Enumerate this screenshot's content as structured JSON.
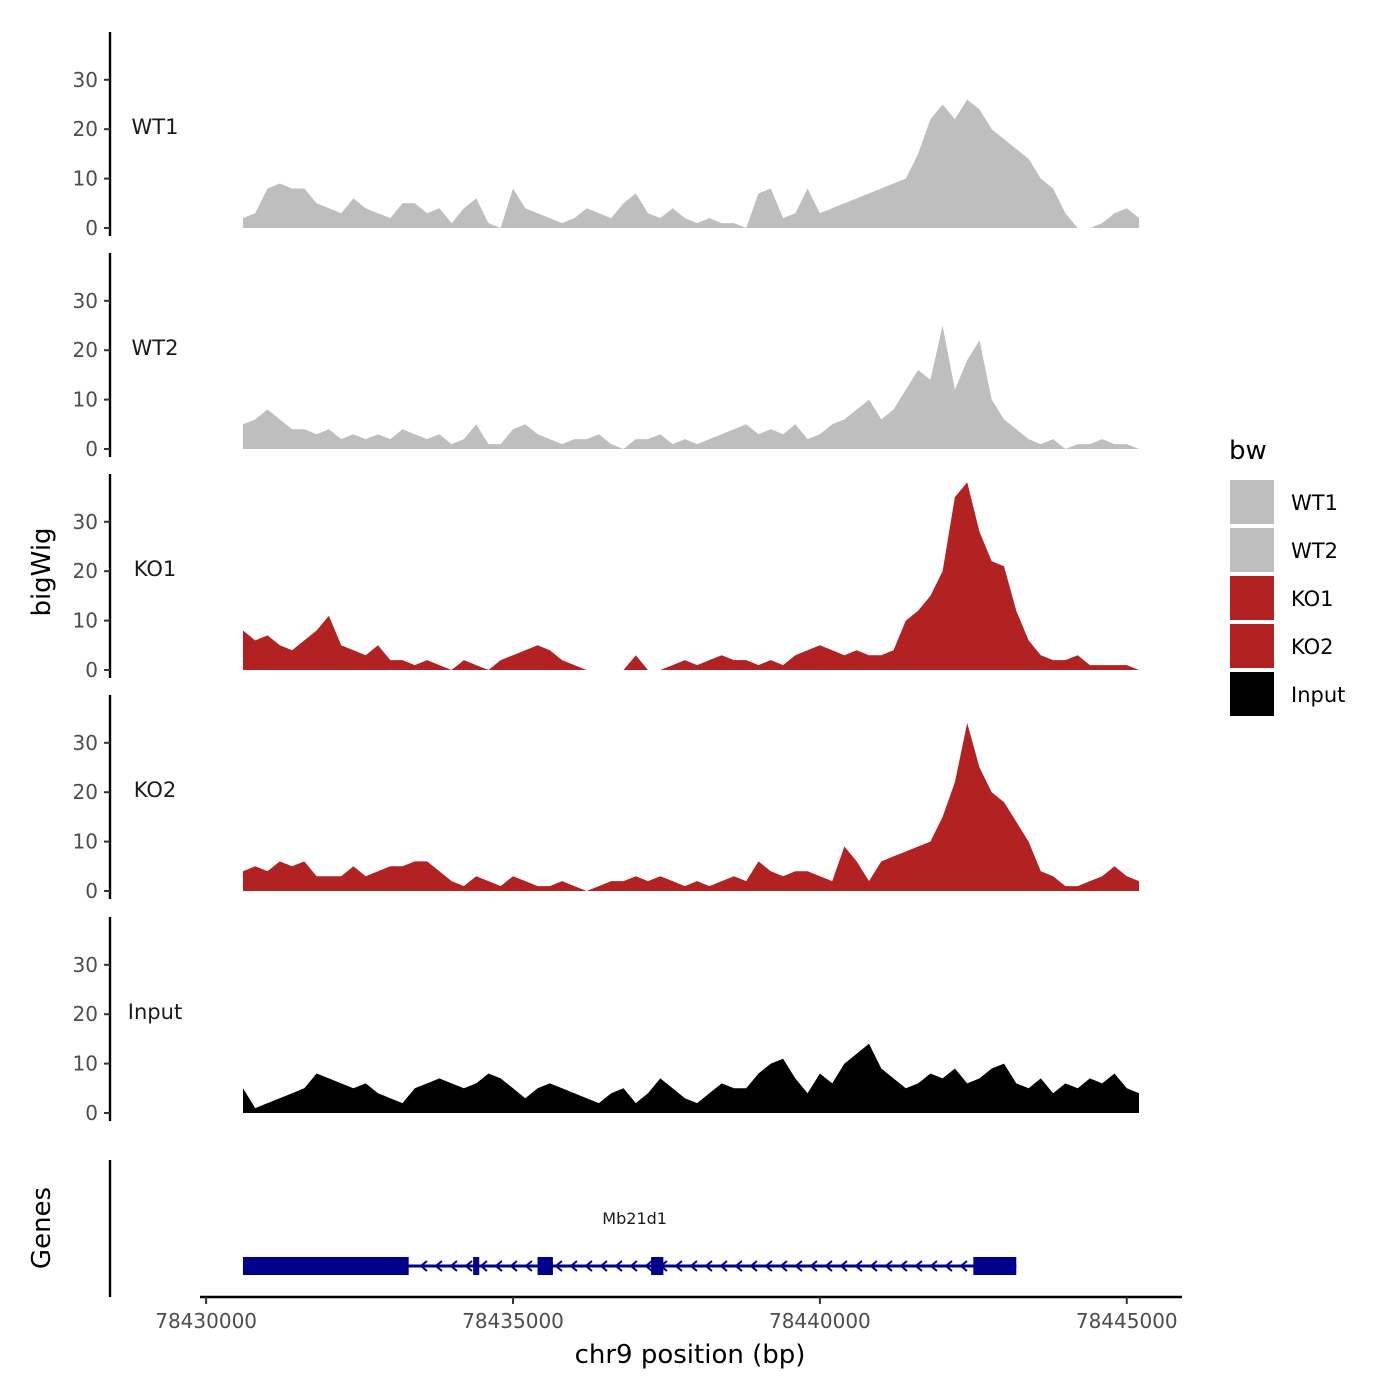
{
  "chart_data": {
    "type": "area",
    "title": "",
    "xlabel": "chr9 position (bp)",
    "ylabel": "bigWig",
    "genes_label": "Genes",
    "xlim": [
      78429900,
      78445900
    ],
    "ylim": [
      0,
      40
    ],
    "x_ticks": [
      78430000,
      78435000,
      78440000,
      78445000
    ],
    "x_tick_labels": [
      "78430000",
      "78435000",
      "78440000",
      "78445000"
    ],
    "y_ticks": [
      0,
      10,
      20,
      30
    ],
    "y_tick_labels": [
      "0",
      "10",
      "20",
      "30"
    ],
    "x": [
      78430600,
      78430800,
      78431000,
      78431200,
      78431400,
      78431600,
      78431800,
      78432000,
      78432200,
      78432400,
      78432600,
      78432800,
      78433000,
      78433200,
      78433400,
      78433600,
      78433800,
      78434000,
      78434200,
      78434400,
      78434600,
      78434800,
      78435000,
      78435200,
      78435400,
      78435600,
      78435800,
      78436000,
      78436200,
      78436400,
      78436600,
      78436800,
      78437000,
      78437200,
      78437400,
      78437600,
      78437800,
      78438000,
      78438200,
      78438400,
      78438600,
      78438800,
      78439000,
      78439200,
      78439400,
      78439600,
      78439800,
      78440000,
      78440200,
      78440400,
      78440600,
      78440800,
      78441000,
      78441200,
      78441400,
      78441600,
      78441800,
      78442000,
      78442200,
      78442400,
      78442600,
      78442800,
      78443000,
      78443200,
      78443400,
      78443600,
      78443800,
      78444000,
      78444200,
      78444400,
      78444600,
      78444800,
      78445000,
      78445200
    ],
    "series": [
      {
        "name": "WT1",
        "color": "#bebebe",
        "values": [
          2,
          3,
          8,
          9,
          8,
          8,
          5,
          4,
          3,
          6,
          4,
          3,
          2,
          5,
          5,
          3,
          4,
          1,
          4,
          6,
          1,
          0,
          8,
          4,
          3,
          2,
          1,
          2,
          4,
          3,
          2,
          5,
          7,
          3,
          2,
          4,
          2,
          1,
          2,
          1,
          1,
          0,
          7,
          8,
          2,
          3,
          8,
          3,
          4,
          5,
          6,
          7,
          8,
          9,
          10,
          15,
          22,
          25,
          22,
          26,
          24,
          20,
          18,
          16,
          14,
          10,
          8,
          3,
          0,
          0,
          1,
          3,
          4,
          2
        ]
      },
      {
        "name": "WT2",
        "color": "#bebebe",
        "values": [
          5,
          6,
          8,
          6,
          4,
          4,
          3,
          4,
          2,
          3,
          2,
          3,
          2,
          4,
          3,
          2,
          3,
          1,
          2,
          5,
          1,
          1,
          4,
          5,
          3,
          2,
          1,
          2,
          2,
          3,
          1,
          0,
          2,
          2,
          3,
          1,
          2,
          1,
          2,
          3,
          4,
          5,
          3,
          4,
          3,
          5,
          2,
          3,
          5,
          6,
          8,
          10,
          6,
          8,
          12,
          16,
          14,
          25,
          12,
          18,
          22,
          10,
          6,
          4,
          2,
          1,
          2,
          0,
          1,
          1,
          2,
          1,
          1,
          0
        ]
      },
      {
        "name": "KO1",
        "color": "#b22222",
        "values": [
          8,
          6,
          7,
          5,
          4,
          6,
          8,
          11,
          5,
          4,
          3,
          5,
          2,
          2,
          1,
          2,
          1,
          0,
          2,
          1,
          0,
          2,
          3,
          4,
          5,
          4,
          2,
          1,
          0,
          0,
          0,
          0,
          3,
          0,
          0,
          1,
          2,
          1,
          2,
          3,
          2,
          2,
          1,
          2,
          1,
          3,
          4,
          5,
          4,
          3,
          4,
          3,
          3,
          4,
          10,
          12,
          15,
          20,
          35,
          38,
          28,
          22,
          21,
          12,
          6,
          3,
          2,
          2,
          3,
          1,
          1,
          1,
          1,
          0
        ]
      },
      {
        "name": "KO2",
        "color": "#b22222",
        "values": [
          4,
          5,
          4,
          6,
          5,
          6,
          3,
          3,
          3,
          5,
          3,
          4,
          5,
          5,
          6,
          6,
          4,
          2,
          1,
          3,
          2,
          1,
          3,
          2,
          1,
          1,
          2,
          1,
          0,
          1,
          2,
          2,
          3,
          2,
          3,
          2,
          1,
          2,
          1,
          2,
          3,
          2,
          6,
          4,
          3,
          4,
          4,
          3,
          2,
          9,
          6,
          2,
          6,
          7,
          8,
          9,
          10,
          15,
          22,
          34,
          25,
          20,
          18,
          14,
          10,
          4,
          3,
          1,
          1,
          2,
          3,
          5,
          3,
          2
        ]
      },
      {
        "name": "Input",
        "color": "#000000",
        "values": [
          5,
          1,
          2,
          3,
          4,
          5,
          8,
          7,
          6,
          5,
          6,
          4,
          3,
          2,
          5,
          6,
          7,
          6,
          5,
          6,
          8,
          7,
          5,
          3,
          5,
          6,
          5,
          4,
          3,
          2,
          4,
          5,
          2,
          4,
          7,
          5,
          3,
          2,
          4,
          6,
          5,
          5,
          8,
          10,
          11,
          7,
          4,
          8,
          6,
          10,
          12,
          14,
          9,
          7,
          5,
          6,
          8,
          7,
          9,
          6,
          7,
          9,
          10,
          6,
          5,
          7,
          4,
          6,
          5,
          7,
          6,
          8,
          5,
          4
        ]
      }
    ],
    "legend": {
      "title": "bw",
      "position": "right",
      "entries": [
        {
          "label": "WT1",
          "color": "#bebebe"
        },
        {
          "label": "WT2",
          "color": "#bebebe"
        },
        {
          "label": "KO1",
          "color": "#b22222"
        },
        {
          "label": "KO2",
          "color": "#b22222"
        },
        {
          "label": "Input",
          "color": "#000000"
        }
      ]
    },
    "gene": {
      "name": "Mb21d1",
      "strand": "-",
      "color": "#00008b",
      "start": 78430600,
      "end": 78443200,
      "exons": [
        {
          "start": 78430600,
          "end": 78433300,
          "type": "thick"
        },
        {
          "start": 78434350,
          "end": 78434450,
          "type": "thick"
        },
        {
          "start": 78435400,
          "end": 78435650,
          "type": "thick"
        },
        {
          "start": 78437250,
          "end": 78437450,
          "type": "thick"
        },
        {
          "start": 78442500,
          "end": 78443200,
          "type": "thick"
        }
      ]
    }
  }
}
